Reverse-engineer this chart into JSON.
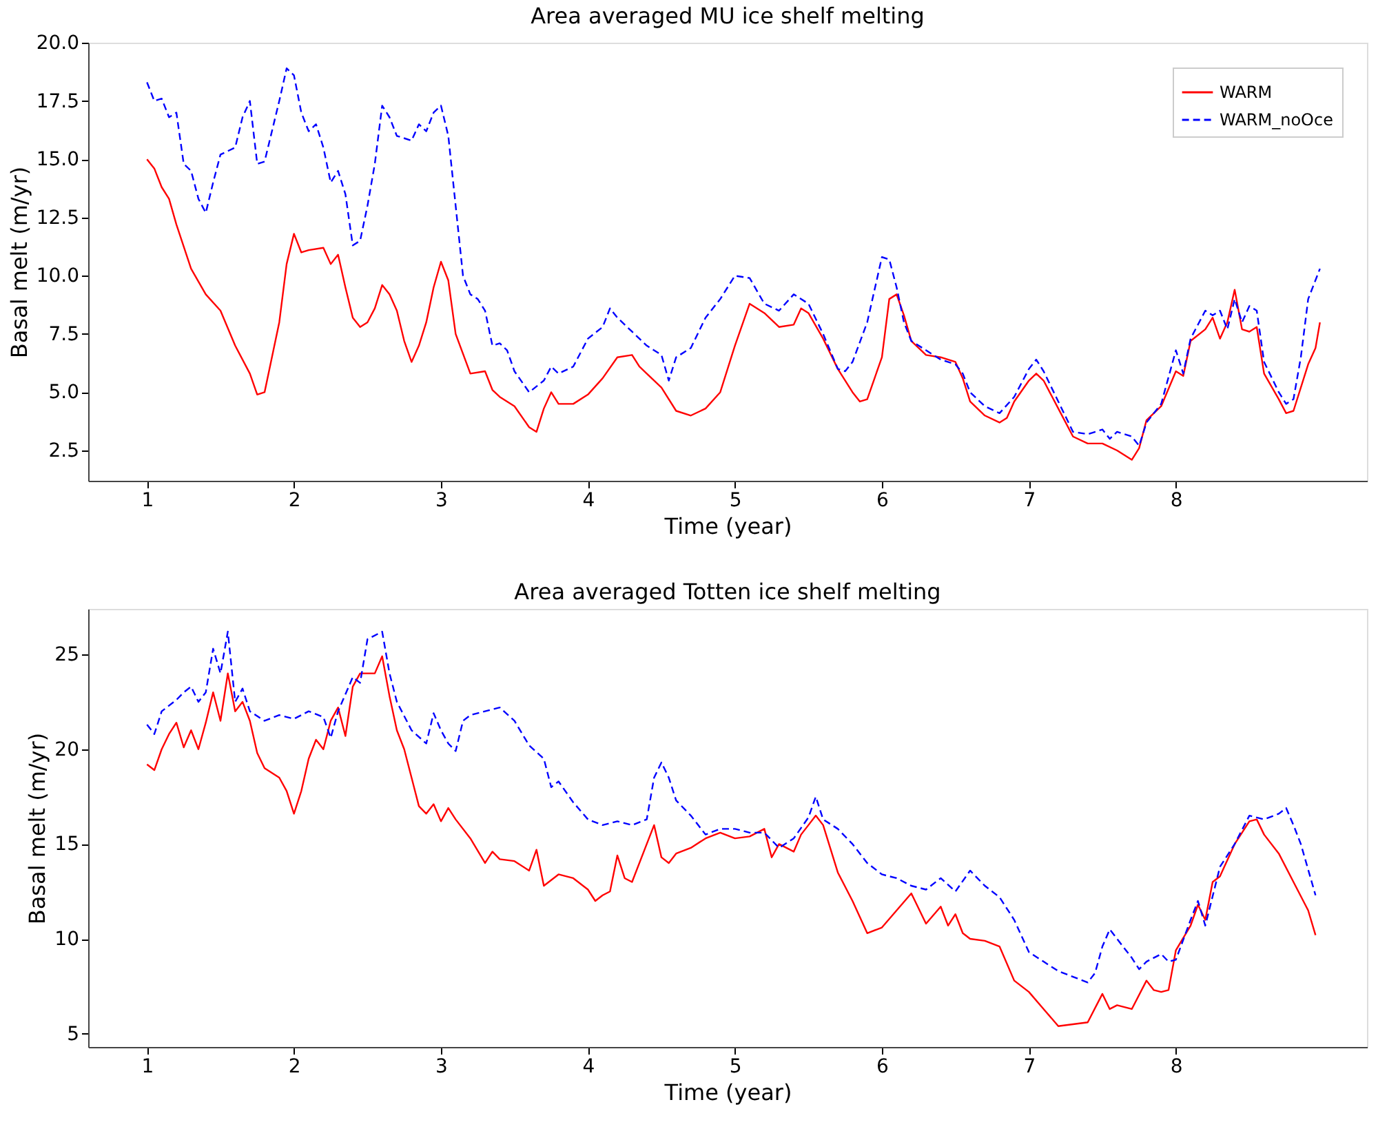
{
  "chart_data": [
    {
      "type": "line",
      "title": "Area averaged MU ice shelf melting",
      "xlabel": "Time (year)",
      "ylabel": "Basal melt (m/yr)",
      "xlim": [
        0.6,
        9.3
      ],
      "xticks": [
        1,
        2,
        3,
        4,
        5,
        6,
        7,
        8
      ],
      "ylim": [
        1.2,
        20.0
      ],
      "yticks": [
        2.5,
        {
          "value": 5,
          "label": "5.0"
        },
        7.5,
        {
          "value": 10,
          "label": "10.0"
        },
        12.5,
        {
          "value": 15,
          "label": "15.0"
        },
        17.5,
        {
          "value": 20,
          "label": "20.0"
        }
      ],
      "grid": false,
      "legend": "top right",
      "series": [
        {
          "name": "WARM",
          "color": "#ff0000",
          "line_style": "solid",
          "x": [
            1.0,
            1.05,
            1.1,
            1.15,
            1.2,
            1.3,
            1.4,
            1.5,
            1.6,
            1.7,
            1.75,
            1.8,
            1.9,
            1.95,
            2.0,
            2.05,
            2.1,
            2.2,
            2.25,
            2.3,
            2.35,
            2.4,
            2.45,
            2.5,
            2.55,
            2.6,
            2.65,
            2.7,
            2.75,
            2.8,
            2.85,
            2.9,
            2.95,
            3.0,
            3.05,
            3.1,
            3.2,
            3.3,
            3.35,
            3.4,
            3.5,
            3.6,
            3.65,
            3.7,
            3.75,
            3.8,
            3.9,
            4.0,
            4.1,
            4.2,
            4.3,
            4.35,
            4.4,
            4.5,
            4.6,
            4.7,
            4.8,
            4.9,
            4.95,
            5.0,
            5.1,
            5.2,
            5.3,
            5.4,
            5.45,
            5.5,
            5.6,
            5.7,
            5.8,
            5.85,
            5.9,
            6.0,
            6.05,
            6.1,
            6.15,
            6.2,
            6.3,
            6.4,
            6.5,
            6.55,
            6.6,
            6.7,
            6.8,
            6.85,
            6.9,
            7.0,
            7.05,
            7.1,
            7.2,
            7.3,
            7.4,
            7.5,
            7.6,
            7.7,
            7.75,
            7.8,
            7.85,
            7.9,
            8.0,
            8.05,
            8.1,
            8.2,
            8.25,
            8.3,
            8.35,
            8.4,
            8.45,
            8.5,
            8.55,
            8.6,
            8.7,
            8.75,
            8.8,
            8.9,
            8.95,
            8.98
          ],
          "values": [
            15.0,
            14.6,
            13.8,
            13.3,
            12.2,
            10.3,
            9.2,
            8.5,
            7.0,
            5.8,
            4.9,
            5.0,
            8.0,
            10.5,
            11.8,
            11.0,
            11.1,
            11.2,
            10.5,
            10.9,
            9.5,
            8.2,
            7.8,
            8.0,
            8.6,
            9.6,
            9.2,
            8.5,
            7.2,
            6.3,
            7.0,
            8.0,
            9.5,
            10.6,
            9.8,
            7.5,
            5.8,
            5.9,
            5.1,
            4.8,
            4.4,
            3.5,
            3.3,
            4.3,
            5.0,
            4.5,
            4.5,
            4.9,
            5.6,
            6.5,
            6.6,
            6.1,
            5.8,
            5.2,
            4.2,
            4.0,
            4.3,
            5.0,
            6.0,
            7.0,
            8.8,
            8.4,
            7.8,
            7.9,
            8.6,
            8.4,
            7.3,
            6.0,
            5.0,
            4.6,
            4.7,
            6.5,
            9.0,
            9.2,
            8.3,
            7.2,
            6.6,
            6.5,
            6.3,
            5.6,
            4.6,
            4.0,
            3.7,
            3.9,
            4.6,
            5.5,
            5.8,
            5.5,
            4.3,
            3.1,
            2.8,
            2.8,
            2.5,
            2.1,
            2.6,
            3.8,
            4.1,
            4.4,
            5.9,
            5.7,
            7.2,
            7.7,
            8.2,
            7.3,
            8.0,
            9.4,
            7.7,
            7.6,
            7.8,
            5.8,
            4.7,
            4.1,
            4.2,
            6.2,
            6.9,
            8.0
          ]
        },
        {
          "name": "WARM_noOce",
          "color": "#0000ff",
          "line_style": "dashed",
          "x": [
            1.0,
            1.05,
            1.1,
            1.15,
            1.2,
            1.25,
            1.3,
            1.35,
            1.4,
            1.45,
            1.5,
            1.6,
            1.65,
            1.7,
            1.75,
            1.8,
            1.9,
            1.95,
            2.0,
            2.05,
            2.1,
            2.15,
            2.2,
            2.25,
            2.3,
            2.35,
            2.4,
            2.45,
            2.5,
            2.55,
            2.6,
            2.65,
            2.7,
            2.8,
            2.85,
            2.9,
            2.95,
            3.0,
            3.05,
            3.1,
            3.15,
            3.2,
            3.25,
            3.3,
            3.35,
            3.4,
            3.45,
            3.5,
            3.6,
            3.7,
            3.75,
            3.8,
            3.9,
            4.0,
            4.1,
            4.15,
            4.2,
            4.3,
            4.4,
            4.5,
            4.55,
            4.6,
            4.7,
            4.8,
            4.9,
            5.0,
            5.1,
            5.2,
            5.3,
            5.4,
            5.5,
            5.6,
            5.7,
            5.75,
            5.8,
            5.9,
            6.0,
            6.05,
            6.1,
            6.15,
            6.2,
            6.3,
            6.4,
            6.5,
            6.55,
            6.6,
            6.7,
            6.8,
            6.9,
            7.0,
            7.05,
            7.1,
            7.2,
            7.3,
            7.4,
            7.5,
            7.55,
            7.6,
            7.7,
            7.75,
            7.8,
            7.9,
            8.0,
            8.05,
            8.1,
            8.2,
            8.25,
            8.3,
            8.35,
            8.4,
            8.45,
            8.5,
            8.55,
            8.6,
            8.7,
            8.75,
            8.8,
            8.85,
            8.9,
            8.98
          ],
          "values": [
            18.3,
            17.5,
            17.6,
            16.8,
            17.0,
            14.8,
            14.5,
            13.3,
            12.7,
            14.0,
            15.2,
            15.5,
            16.8,
            17.5,
            14.8,
            14.9,
            17.5,
            18.9,
            18.6,
            17.0,
            16.2,
            16.5,
            15.5,
            14.0,
            14.5,
            13.5,
            11.3,
            11.5,
            13.0,
            14.8,
            17.3,
            16.8,
            16.0,
            15.8,
            16.5,
            16.2,
            17.0,
            17.3,
            16.0,
            13.0,
            10.0,
            9.2,
            9.0,
            8.5,
            7.0,
            7.1,
            6.8,
            5.9,
            5.0,
            5.5,
            6.1,
            5.8,
            6.1,
            7.3,
            7.8,
            8.6,
            8.2,
            7.6,
            7.0,
            6.6,
            5.5,
            6.5,
            6.9,
            8.2,
            9.0,
            10.0,
            9.9,
            8.8,
            8.5,
            9.2,
            8.8,
            7.5,
            6.0,
            5.9,
            6.3,
            8.0,
            10.8,
            10.7,
            9.5,
            8.0,
            7.2,
            6.8,
            6.4,
            6.2,
            5.8,
            5.0,
            4.4,
            4.1,
            4.8,
            6.0,
            6.4,
            5.9,
            4.6,
            3.3,
            3.2,
            3.4,
            3.0,
            3.3,
            3.1,
            2.7,
            3.7,
            4.5,
            6.8,
            5.8,
            7.3,
            8.5,
            8.3,
            8.5,
            7.7,
            9.0,
            8.0,
            8.7,
            8.5,
            6.3,
            5.0,
            4.5,
            4.7,
            6.5,
            9.0,
            10.3
          ]
        }
      ]
    },
    {
      "type": "line",
      "title": "Area averaged Totten ice shelf melting",
      "xlabel": "Time (year)",
      "ylabel": "Basal melt (m/yr)",
      "xlim": [
        0.6,
        9.3
      ],
      "xticks": [
        1,
        2,
        3,
        4,
        5,
        6,
        7,
        8
      ],
      "ylim": [
        4.3,
        27.4
      ],
      "yticks": [
        5,
        10,
        15,
        20,
        25
      ],
      "grid": false,
      "legend": "top right",
      "series": [
        {
          "name": "WARM",
          "color": "#ff0000",
          "line_style": "solid",
          "x": [
            1.0,
            1.05,
            1.1,
            1.15,
            1.2,
            1.25,
            1.3,
            1.35,
            1.4,
            1.45,
            1.5,
            1.55,
            1.6,
            1.65,
            1.7,
            1.75,
            1.8,
            1.9,
            1.95,
            2.0,
            2.05,
            2.1,
            2.15,
            2.2,
            2.25,
            2.3,
            2.35,
            2.4,
            2.45,
            2.5,
            2.55,
            2.6,
            2.65,
            2.7,
            2.75,
            2.8,
            2.85,
            2.9,
            2.95,
            3.0,
            3.05,
            3.1,
            3.2,
            3.3,
            3.35,
            3.4,
            3.5,
            3.6,
            3.65,
            3.7,
            3.8,
            3.9,
            4.0,
            4.05,
            4.1,
            4.15,
            4.2,
            4.25,
            4.3,
            4.4,
            4.45,
            4.5,
            4.55,
            4.6,
            4.7,
            4.8,
            4.9,
            5.0,
            5.1,
            5.2,
            5.25,
            5.3,
            5.4,
            5.45,
            5.5,
            5.55,
            5.6,
            5.7,
            5.8,
            5.9,
            6.0,
            6.1,
            6.2,
            6.3,
            6.4,
            6.45,
            6.5,
            6.55,
            6.6,
            6.7,
            6.8,
            6.9,
            7.0,
            7.1,
            7.2,
            7.3,
            7.4,
            7.5,
            7.55,
            7.6,
            7.7,
            7.8,
            7.85,
            7.9,
            7.95,
            8.0,
            8.1,
            8.15,
            8.2,
            8.25,
            8.3,
            8.4,
            8.5,
            8.55,
            8.6,
            8.7,
            8.8,
            8.9,
            8.95
          ],
          "values": [
            19.2,
            18.9,
            20.0,
            20.8,
            21.4,
            20.1,
            21.0,
            20.0,
            21.4,
            23.0,
            21.5,
            24.0,
            22.0,
            22.5,
            21.5,
            19.8,
            19.0,
            18.5,
            17.8,
            16.6,
            17.8,
            19.5,
            20.5,
            20.0,
            21.5,
            22.2,
            20.7,
            23.3,
            24.0,
            24.0,
            24.0,
            24.9,
            22.8,
            21.0,
            20.0,
            18.5,
            17.0,
            16.6,
            17.1,
            16.2,
            16.9,
            16.3,
            15.3,
            14.0,
            14.6,
            14.2,
            14.1,
            13.6,
            14.7,
            12.8,
            13.4,
            13.2,
            12.6,
            12.0,
            12.3,
            12.5,
            14.4,
            13.2,
            13.0,
            15.0,
            16.0,
            14.3,
            14.0,
            14.5,
            14.8,
            15.3,
            15.6,
            15.3,
            15.4,
            15.8,
            14.3,
            15.0,
            14.6,
            15.5,
            16.0,
            16.5,
            16.0,
            13.5,
            12.0,
            10.3,
            10.6,
            11.5,
            12.4,
            10.8,
            11.7,
            10.7,
            11.3,
            10.3,
            10.0,
            9.9,
            9.6,
            7.8,
            7.2,
            6.3,
            5.4,
            5.5,
            5.6,
            7.1,
            6.3,
            6.5,
            6.3,
            7.8,
            7.3,
            7.2,
            7.3,
            9.4,
            10.7,
            11.8,
            11.0,
            13.0,
            13.3,
            15.0,
            16.2,
            16.3,
            15.5,
            14.5,
            13.0,
            11.5,
            10.2
          ]
        },
        {
          "name": "WARM_noOce",
          "color": "#0000ff",
          "line_style": "dashed",
          "x": [
            1.0,
            1.05,
            1.1,
            1.2,
            1.25,
            1.3,
            1.35,
            1.4,
            1.45,
            1.5,
            1.55,
            1.6,
            1.65,
            1.7,
            1.8,
            1.9,
            2.0,
            2.1,
            2.2,
            2.25,
            2.3,
            2.4,
            2.45,
            2.5,
            2.6,
            2.65,
            2.7,
            2.8,
            2.9,
            2.95,
            3.0,
            3.05,
            3.1,
            3.15,
            3.2,
            3.3,
            3.4,
            3.5,
            3.6,
            3.7,
            3.75,
            3.8,
            3.9,
            4.0,
            4.1,
            4.2,
            4.3,
            4.4,
            4.45,
            4.5,
            4.55,
            4.6,
            4.7,
            4.8,
            4.9,
            5.0,
            5.1,
            5.2,
            5.3,
            5.4,
            5.5,
            5.55,
            5.6,
            5.7,
            5.8,
            5.9,
            6.0,
            6.1,
            6.2,
            6.3,
            6.4,
            6.5,
            6.6,
            6.7,
            6.8,
            6.9,
            7.0,
            7.1,
            7.2,
            7.3,
            7.4,
            7.45,
            7.5,
            7.55,
            7.6,
            7.7,
            7.75,
            7.8,
            7.9,
            7.95,
            8.0,
            8.1,
            8.15,
            8.2,
            8.3,
            8.4,
            8.5,
            8.6,
            8.7,
            8.75,
            8.8,
            8.85,
            8.95
          ],
          "values": [
            21.3,
            20.8,
            22.0,
            22.6,
            23.0,
            23.3,
            22.5,
            23.0,
            25.3,
            24.0,
            26.2,
            22.5,
            23.2,
            22.0,
            21.5,
            21.8,
            21.6,
            22.0,
            21.7,
            20.6,
            22.0,
            23.8,
            23.5,
            25.8,
            26.2,
            24.0,
            22.5,
            21.0,
            20.3,
            21.9,
            21.0,
            20.3,
            19.9,
            21.5,
            21.8,
            22.0,
            22.2,
            21.5,
            20.2,
            19.5,
            18.0,
            18.3,
            17.2,
            16.3,
            16.0,
            16.2,
            16.0,
            16.3,
            18.5,
            19.3,
            18.5,
            17.3,
            16.5,
            15.5,
            15.8,
            15.8,
            15.6,
            15.6,
            14.8,
            15.3,
            16.4,
            17.5,
            16.3,
            15.8,
            15.0,
            14.0,
            13.4,
            13.2,
            12.8,
            12.6,
            13.2,
            12.5,
            13.6,
            12.8,
            12.2,
            11.0,
            9.3,
            8.8,
            8.3,
            8.0,
            7.7,
            8.2,
            9.6,
            10.5,
            10.0,
            9.0,
            8.4,
            8.8,
            9.2,
            8.8,
            8.9,
            11.0,
            12.0,
            10.7,
            13.8,
            15.0,
            16.5,
            16.3,
            16.6,
            16.9,
            16.0,
            15.0,
            12.3
          ]
        }
      ]
    }
  ]
}
